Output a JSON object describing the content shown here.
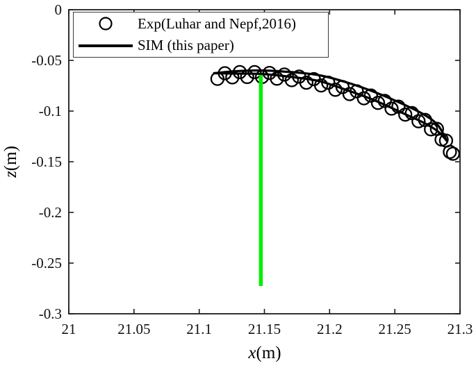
{
  "chart_data": {
    "type": "scatter",
    "title": "",
    "xlabel_var": "x",
    "xlabel_unit": "(m)",
    "ylabel_var": "z",
    "ylabel_unit": "(m)",
    "xlim": [
      21,
      21.3
    ],
    "ylim": [
      -0.3,
      0
    ],
    "grid": false,
    "x_ticks": [
      21,
      21.05,
      21.1,
      21.15,
      21.2,
      21.25,
      21.3
    ],
    "x_tick_labels": [
      "21",
      "21.05",
      "21.1",
      "21.15",
      "21.2",
      "21.25",
      "21.3"
    ],
    "y_ticks": [
      0,
      -0.05,
      -0.1,
      -0.15,
      -0.2,
      -0.25,
      -0.3
    ],
    "y_tick_labels": [
      "0",
      "-0.05",
      "-0.1",
      "-0.15",
      "-0.2",
      "-0.25",
      "-0.3"
    ],
    "legend": {
      "position": "northwest",
      "items": [
        {
          "label": "Exp(Luhar and Nepf,2016)",
          "marker": "open-circle",
          "color": "#000000"
        },
        {
          "label": "SIM (this paper)",
          "marker": "line",
          "color": "#000000"
        }
      ]
    },
    "series": [
      {
        "name": "Exp(Luhar and Nepf,2016)",
        "type": "scatter",
        "marker": "open-circle",
        "color": "#000000",
        "points": [
          [
            21.114,
            -0.0682
          ],
          [
            21.1197,
            -0.0627
          ],
          [
            21.1254,
            -0.0668
          ],
          [
            21.1311,
            -0.0616
          ],
          [
            21.1368,
            -0.0664
          ],
          [
            21.1425,
            -0.0616
          ],
          [
            21.1482,
            -0.0664
          ],
          [
            21.1539,
            -0.0624
          ],
          [
            21.1596,
            -0.068
          ],
          [
            21.1653,
            -0.064
          ],
          [
            21.171,
            -0.0695
          ],
          [
            21.1766,
            -0.066
          ],
          [
            21.1822,
            -0.072
          ],
          [
            21.1879,
            -0.0685
          ],
          [
            21.1935,
            -0.0747
          ],
          [
            21.1989,
            -0.072
          ],
          [
            21.2044,
            -0.079
          ],
          [
            21.2099,
            -0.0763
          ],
          [
            21.2153,
            -0.0832
          ],
          [
            21.2208,
            -0.0805
          ],
          [
            21.2263,
            -0.0874
          ],
          [
            21.2317,
            -0.0847
          ],
          [
            21.2371,
            -0.0919
          ],
          [
            21.2423,
            -0.09
          ],
          [
            21.2475,
            -0.0976
          ],
          [
            21.2528,
            -0.0957
          ],
          [
            21.258,
            -0.1035
          ],
          [
            21.2631,
            -0.102
          ],
          [
            21.2682,
            -0.1101
          ],
          [
            21.2732,
            -0.1088
          ],
          [
            21.2777,
            -0.118
          ],
          [
            21.2823,
            -0.1176
          ],
          [
            21.2859,
            -0.1281
          ],
          [
            21.2893,
            -0.1292
          ],
          [
            21.2922,
            -0.1403
          ],
          [
            21.2946,
            -0.1421
          ]
        ]
      },
      {
        "name": "SIM (this paper)",
        "type": "line-loop",
        "color": "#000000",
        "upper": [
          [
            21.1114,
            -0.0627
          ],
          [
            21.1284,
            -0.0606
          ],
          [
            21.1481,
            -0.0599
          ],
          [
            21.171,
            -0.0616
          ],
          [
            21.1923,
            -0.0647
          ],
          [
            21.2137,
            -0.0719
          ],
          [
            21.235,
            -0.0815
          ],
          [
            21.2563,
            -0.0932
          ],
          [
            21.2723,
            -0.1034
          ],
          [
            21.2829,
            -0.1137
          ],
          [
            21.2899,
            -0.1294
          ]
        ],
        "lower": [
          [
            21.1114,
            -0.0627
          ],
          [
            21.1284,
            -0.063
          ],
          [
            21.1481,
            -0.0634
          ],
          [
            21.171,
            -0.0664
          ],
          [
            21.1923,
            -0.0705
          ],
          [
            21.2137,
            -0.0795
          ],
          [
            21.235,
            -0.0897
          ],
          [
            21.2563,
            -0.1021
          ],
          [
            21.2723,
            -0.1116
          ],
          [
            21.2829,
            -0.1199
          ],
          [
            21.2899,
            -0.1294
          ]
        ]
      },
      {
        "name": "green vertical line",
        "type": "line",
        "color": "#00ee00",
        "points": [
          [
            21.1473,
            -0.0644
          ],
          [
            21.1473,
            -0.2726
          ]
        ]
      }
    ]
  }
}
